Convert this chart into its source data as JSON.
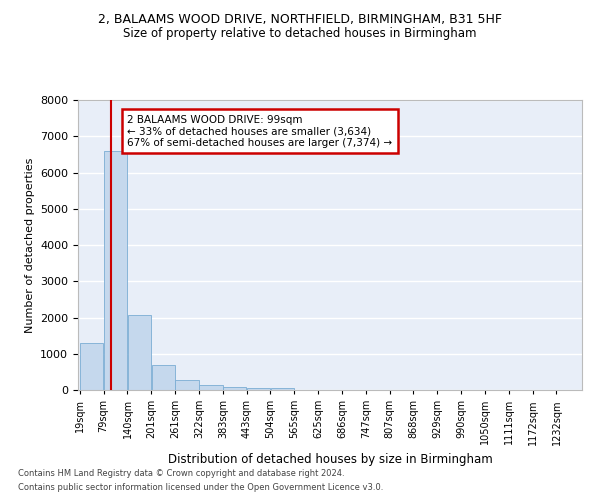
{
  "title_line1": "2, BALAAMS WOOD DRIVE, NORTHFIELD, BIRMINGHAM, B31 5HF",
  "title_line2": "Size of property relative to detached houses in Birmingham",
  "xlabel": "Distribution of detached houses by size in Birmingham",
  "ylabel": "Number of detached properties",
  "footer1": "Contains HM Land Registry data © Crown copyright and database right 2024.",
  "footer2": "Contains public sector information licensed under the Open Government Licence v3.0.",
  "annotation_title": "2 BALAAMS WOOD DRIVE: 99sqm",
  "annotation_line2": "← 33% of detached houses are smaller (3,634)",
  "annotation_line3": "67% of semi-detached houses are larger (7,374) →",
  "property_size_sqm": 99,
  "bins": [
    19,
    79,
    140,
    201,
    261,
    322,
    383,
    443,
    504,
    565,
    625,
    686,
    747,
    807,
    868,
    929,
    990,
    1050,
    1111,
    1172,
    1232
  ],
  "bin_labels": [
    "19sqm",
    "79sqm",
    "140sqm",
    "201sqm",
    "261sqm",
    "322sqm",
    "383sqm",
    "443sqm",
    "504sqm",
    "565sqm",
    "625sqm",
    "686sqm",
    "747sqm",
    "807sqm",
    "868sqm",
    "929sqm",
    "990sqm",
    "1050sqm",
    "1111sqm",
    "1172sqm",
    "1232sqm"
  ],
  "values": [
    1300,
    6600,
    2070,
    690,
    280,
    140,
    90,
    60,
    50,
    0,
    0,
    0,
    0,
    0,
    0,
    0,
    0,
    0,
    0,
    0
  ],
  "bar_color": "#c5d8ed",
  "bar_edge_color": "#7badd4",
  "vline_color": "#cc0000",
  "annotation_box_color": "#cc0000",
  "bg_color": "#e8eef8",
  "grid_color": "#ffffff",
  "ylim": [
    0,
    8000
  ],
  "yticks": [
    0,
    1000,
    2000,
    3000,
    4000,
    5000,
    6000,
    7000,
    8000
  ],
  "title_fontsize": 9,
  "subtitle_fontsize": 8.5,
  "ylabel_fontsize": 8,
  "xlabel_fontsize": 8.5,
  "tick_fontsize": 7,
  "annotation_fontsize": 7.5,
  "footer_fontsize": 6
}
